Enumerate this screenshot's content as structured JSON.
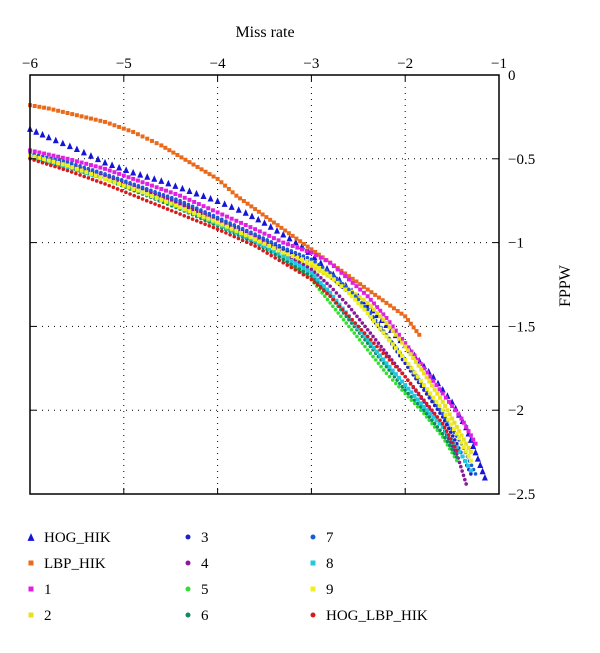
{
  "chart_data": {
    "type": "scatter",
    "title": "",
    "xlabel": "Miss rate",
    "ylabel": "FPPW",
    "xlim": [
      -6,
      -1
    ],
    "ylim": [
      -2.5,
      0
    ],
    "x_ticks": [
      "−6",
      "−5",
      "−4",
      "−3",
      "−2",
      "−1"
    ],
    "y_ticks": [
      "0",
      "−0.5",
      "−1",
      "−1.5",
      "−2",
      "−2.5"
    ],
    "x_axis_position": "top",
    "y_axis_position": "right",
    "grid": true,
    "legend_position": "bottom",
    "series": [
      {
        "name": "HOG_HIK",
        "color": "#1515d8",
        "marker": "triangle",
        "points": [
          [
            -6.0,
            -0.32
          ],
          [
            -5.8,
            -0.37
          ],
          [
            -5.5,
            -0.44
          ],
          [
            -5.2,
            -0.52
          ],
          [
            -4.9,
            -0.58
          ],
          [
            -4.6,
            -0.63
          ],
          [
            -4.3,
            -0.69
          ],
          [
            -4.0,
            -0.75
          ],
          [
            -3.7,
            -0.82
          ],
          [
            -3.5,
            -0.88
          ],
          [
            -3.3,
            -0.95
          ],
          [
            -3.1,
            -1.02
          ],
          [
            -2.9,
            -1.12
          ],
          [
            -2.7,
            -1.22
          ],
          [
            -2.5,
            -1.32
          ],
          [
            -2.3,
            -1.43
          ],
          [
            -2.1,
            -1.55
          ],
          [
            -1.9,
            -1.67
          ],
          [
            -1.7,
            -1.8
          ],
          [
            -1.5,
            -1.95
          ],
          [
            -1.35,
            -2.1
          ],
          [
            -1.25,
            -2.25
          ],
          [
            -1.15,
            -2.4
          ]
        ]
      },
      {
        "name": "LBP_HIK",
        "color": "#e86a1a",
        "marker": "square",
        "points": [
          [
            -6.0,
            -0.18
          ],
          [
            -5.8,
            -0.2
          ],
          [
            -5.5,
            -0.24
          ],
          [
            -5.2,
            -0.28
          ],
          [
            -4.9,
            -0.34
          ],
          [
            -4.6,
            -0.42
          ],
          [
            -4.3,
            -0.52
          ],
          [
            -4.0,
            -0.62
          ],
          [
            -3.8,
            -0.72
          ],
          [
            -3.6,
            -0.8
          ],
          [
            -3.4,
            -0.88
          ],
          [
            -3.2,
            -0.96
          ],
          [
            -3.0,
            -1.04
          ],
          [
            -2.8,
            -1.12
          ],
          [
            -2.6,
            -1.2
          ],
          [
            -2.4,
            -1.28
          ],
          [
            -2.2,
            -1.36
          ],
          [
            -2.0,
            -1.44
          ],
          [
            -1.85,
            -1.55
          ]
        ]
      },
      {
        "name": "1",
        "color": "#e020e0",
        "marker": "square",
        "points": [
          [
            -6.0,
            -0.45
          ],
          [
            -5.6,
            -0.5
          ],
          [
            -5.2,
            -0.56
          ],
          [
            -4.8,
            -0.64
          ],
          [
            -4.4,
            -0.72
          ],
          [
            -4.0,
            -0.82
          ],
          [
            -3.6,
            -0.92
          ],
          [
            -3.3,
            -1.0
          ],
          [
            -3.0,
            -1.06
          ],
          [
            -2.8,
            -1.12
          ],
          [
            -2.6,
            -1.22
          ],
          [
            -2.4,
            -1.32
          ],
          [
            -2.2,
            -1.45
          ],
          [
            -2.0,
            -1.6
          ],
          [
            -1.8,
            -1.75
          ],
          [
            -1.6,
            -1.9
          ],
          [
            -1.4,
            -2.05
          ],
          [
            -1.25,
            -2.2
          ]
        ]
      },
      {
        "name": "2",
        "color": "#e8e020",
        "marker": "square",
        "points": [
          [
            -6.0,
            -0.48
          ],
          [
            -5.6,
            -0.54
          ],
          [
            -5.2,
            -0.62
          ],
          [
            -4.8,
            -0.7
          ],
          [
            -4.4,
            -0.78
          ],
          [
            -4.0,
            -0.88
          ],
          [
            -3.6,
            -0.98
          ],
          [
            -3.3,
            -1.06
          ],
          [
            -3.0,
            -1.14
          ],
          [
            -2.7,
            -1.24
          ],
          [
            -2.4,
            -1.36
          ],
          [
            -2.2,
            -1.48
          ],
          [
            -2.0,
            -1.62
          ],
          [
            -1.8,
            -1.78
          ],
          [
            -1.6,
            -1.95
          ],
          [
            -1.45,
            -2.1
          ],
          [
            -1.3,
            -2.25
          ]
        ]
      },
      {
        "name": "3",
        "color": "#2020c8",
        "marker": "dot",
        "points": [
          [
            -6.0,
            -0.47
          ],
          [
            -5.6,
            -0.53
          ],
          [
            -5.2,
            -0.6
          ],
          [
            -4.8,
            -0.68
          ],
          [
            -4.4,
            -0.76
          ],
          [
            -4.0,
            -0.86
          ],
          [
            -3.6,
            -0.96
          ],
          [
            -3.3,
            -1.04
          ],
          [
            -3.0,
            -1.12
          ],
          [
            -2.8,
            -1.2
          ],
          [
            -2.6,
            -1.3
          ],
          [
            -2.4,
            -1.42
          ],
          [
            -2.2,
            -1.56
          ],
          [
            -2.0,
            -1.72
          ],
          [
            -1.8,
            -1.88
          ],
          [
            -1.6,
            -2.04
          ],
          [
            -1.45,
            -2.2
          ],
          [
            -1.3,
            -2.38
          ]
        ]
      },
      {
        "name": "4",
        "color": "#8a1a9a",
        "marker": "dot",
        "points": [
          [
            -6.0,
            -0.48
          ],
          [
            -5.6,
            -0.54
          ],
          [
            -5.2,
            -0.6
          ],
          [
            -4.8,
            -0.68
          ],
          [
            -4.4,
            -0.77
          ],
          [
            -4.0,
            -0.87
          ],
          [
            -3.6,
            -0.97
          ],
          [
            -3.3,
            -1.06
          ],
          [
            -3.0,
            -1.16
          ],
          [
            -2.8,
            -1.26
          ],
          [
            -2.6,
            -1.38
          ],
          [
            -2.4,
            -1.52
          ],
          [
            -2.2,
            -1.66
          ],
          [
            -2.0,
            -1.8
          ],
          [
            -1.8,
            -1.95
          ],
          [
            -1.6,
            -2.1
          ],
          [
            -1.45,
            -2.26
          ],
          [
            -1.35,
            -2.44
          ]
        ]
      },
      {
        "name": "5",
        "color": "#30e030",
        "marker": "dot",
        "points": [
          [
            -6.0,
            -0.49
          ],
          [
            -5.6,
            -0.55
          ],
          [
            -5.2,
            -0.62
          ],
          [
            -4.8,
            -0.7
          ],
          [
            -4.4,
            -0.79
          ],
          [
            -4.0,
            -0.89
          ],
          [
            -3.6,
            -0.99
          ],
          [
            -3.3,
            -1.1
          ],
          [
            -3.0,
            -1.22
          ],
          [
            -2.8,
            -1.36
          ],
          [
            -2.6,
            -1.5
          ],
          [
            -2.4,
            -1.64
          ],
          [
            -2.2,
            -1.78
          ],
          [
            -2.0,
            -1.9
          ],
          [
            -1.8,
            -2.02
          ],
          [
            -1.6,
            -2.16
          ],
          [
            -1.45,
            -2.3
          ]
        ]
      },
      {
        "name": "6",
        "color": "#108a60",
        "marker": "dot",
        "points": [
          [
            -6.0,
            -0.49
          ],
          [
            -5.6,
            -0.55
          ],
          [
            -5.2,
            -0.62
          ],
          [
            -4.8,
            -0.71
          ],
          [
            -4.4,
            -0.8
          ],
          [
            -4.0,
            -0.9
          ],
          [
            -3.6,
            -1.0
          ],
          [
            -3.3,
            -1.1
          ],
          [
            -3.0,
            -1.2
          ],
          [
            -2.8,
            -1.32
          ],
          [
            -2.6,
            -1.46
          ],
          [
            -2.4,
            -1.6
          ],
          [
            -2.2,
            -1.74
          ],
          [
            -2.0,
            -1.88
          ],
          [
            -1.8,
            -2.0
          ],
          [
            -1.6,
            -2.14
          ],
          [
            -1.45,
            -2.28
          ]
        ]
      },
      {
        "name": "7",
        "color": "#1a5ad8",
        "marker": "dot",
        "points": [
          [
            -6.0,
            -0.47
          ],
          [
            -5.6,
            -0.52
          ],
          [
            -5.2,
            -0.59
          ],
          [
            -4.8,
            -0.67
          ],
          [
            -4.4,
            -0.75
          ],
          [
            -4.0,
            -0.85
          ],
          [
            -3.6,
            -0.95
          ],
          [
            -3.3,
            -1.03
          ],
          [
            -3.0,
            -1.1
          ],
          [
            -2.8,
            -1.18
          ],
          [
            -2.6,
            -1.28
          ],
          [
            -2.4,
            -1.4
          ],
          [
            -2.2,
            -1.55
          ],
          [
            -2.0,
            -1.7
          ],
          [
            -1.8,
            -1.86
          ],
          [
            -1.6,
            -2.02
          ],
          [
            -1.4,
            -2.2
          ],
          [
            -1.25,
            -2.38
          ]
        ]
      },
      {
        "name": "8",
        "color": "#20c8e0",
        "marker": "square",
        "points": [
          [
            -6.0,
            -0.49
          ],
          [
            -5.6,
            -0.55
          ],
          [
            -5.2,
            -0.62
          ],
          [
            -4.8,
            -0.7
          ],
          [
            -4.4,
            -0.79
          ],
          [
            -4.0,
            -0.89
          ],
          [
            -3.6,
            -0.99
          ],
          [
            -3.3,
            -1.08
          ],
          [
            -3.0,
            -1.18
          ],
          [
            -2.8,
            -1.3
          ],
          [
            -2.6,
            -1.44
          ],
          [
            -2.4,
            -1.58
          ],
          [
            -2.2,
            -1.72
          ],
          [
            -2.0,
            -1.85
          ],
          [
            -1.8,
            -1.98
          ],
          [
            -1.6,
            -2.1
          ],
          [
            -1.45,
            -2.22
          ],
          [
            -1.3,
            -2.36
          ]
        ]
      },
      {
        "name": "9",
        "color": "#f0f020",
        "marker": "square",
        "points": [
          [
            -6.0,
            -0.48
          ],
          [
            -5.6,
            -0.54
          ],
          [
            -5.2,
            -0.62
          ],
          [
            -4.8,
            -0.7
          ],
          [
            -4.4,
            -0.79
          ],
          [
            -4.0,
            -0.88
          ],
          [
            -3.6,
            -0.98
          ],
          [
            -3.3,
            -1.06
          ],
          [
            -3.0,
            -1.12
          ],
          [
            -2.8,
            -1.2
          ],
          [
            -2.6,
            -1.3
          ],
          [
            -2.4,
            -1.42
          ],
          [
            -2.2,
            -1.56
          ],
          [
            -2.0,
            -1.7
          ],
          [
            -1.8,
            -1.85
          ],
          [
            -1.6,
            -2.0
          ],
          [
            -1.45,
            -2.14
          ],
          [
            -1.3,
            -2.3
          ]
        ]
      },
      {
        "name": "HOG_LBP_HIK",
        "color": "#d81a1a",
        "marker": "dot",
        "points": [
          [
            -6.0,
            -0.5
          ],
          [
            -5.6,
            -0.57
          ],
          [
            -5.2,
            -0.65
          ],
          [
            -4.8,
            -0.74
          ],
          [
            -4.4,
            -0.83
          ],
          [
            -4.0,
            -0.92
          ],
          [
            -3.6,
            -1.02
          ],
          [
            -3.3,
            -1.12
          ],
          [
            -3.0,
            -1.22
          ],
          [
            -2.8,
            -1.32
          ],
          [
            -2.6,
            -1.44
          ],
          [
            -2.4,
            -1.56
          ],
          [
            -2.2,
            -1.68
          ],
          [
            -2.0,
            -1.8
          ],
          [
            -1.8,
            -1.94
          ],
          [
            -1.6,
            -2.08
          ],
          [
            -1.45,
            -2.24
          ]
        ]
      }
    ]
  }
}
